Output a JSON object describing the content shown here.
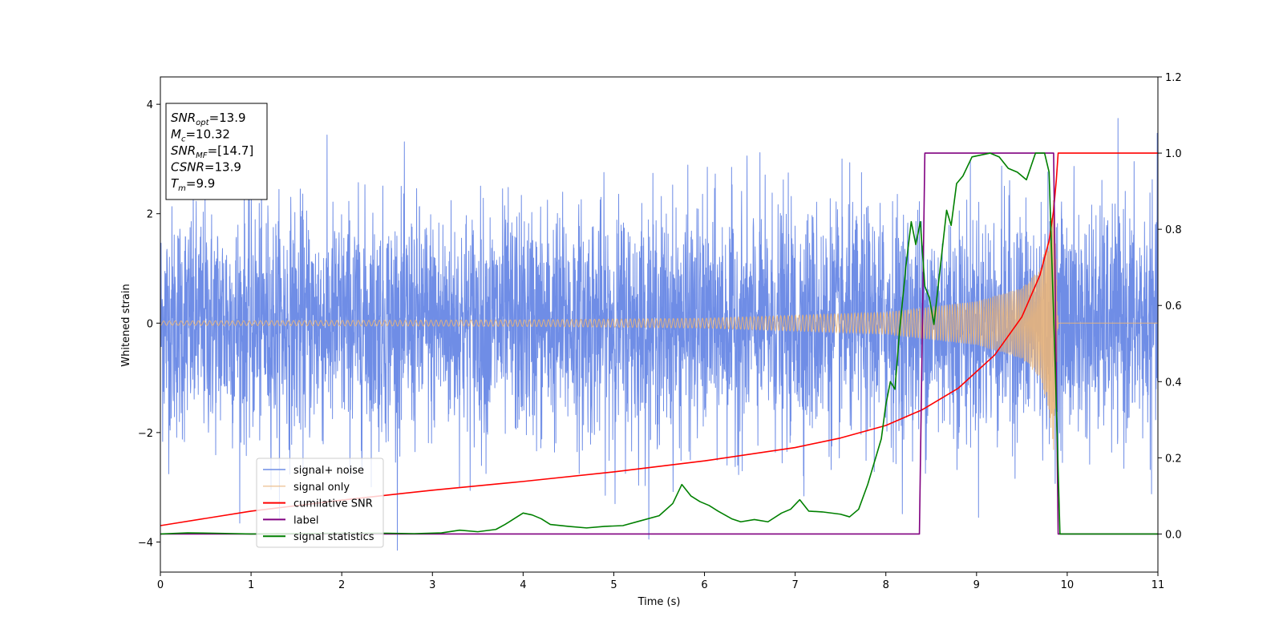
{
  "chart_data": {
    "type": "line",
    "xlabel": "Time (s)",
    "ylabel_left": "Whitened strain",
    "ylabel_right": "",
    "xlim": [
      0,
      11
    ],
    "ylim_left": [
      -4.55,
      4.5
    ],
    "ylim_right": [
      -0.1,
      1.2
    ],
    "x_ticks": [
      0,
      1,
      2,
      3,
      4,
      5,
      6,
      7,
      8,
      9,
      10,
      11
    ],
    "y_ticks_left": [
      -4,
      -2,
      0,
      2,
      4
    ],
    "y_ticks_right": [
      0.0,
      0.2,
      0.4,
      0.6,
      0.8,
      1.0,
      1.2
    ],
    "y_tick_labels_right": [
      "0.0",
      "0.2",
      "0.4",
      "0.6",
      "0.8",
      "1.0",
      "1.2"
    ],
    "grid": false,
    "legend_position": "lower-left",
    "info_box": {
      "lines": [
        {
          "name": "SNR",
          "sub": "opt",
          "value": "=13.9"
        },
        {
          "name": "M",
          "sub": "c",
          "value": "=10.32"
        },
        {
          "name": "SNR",
          "sub": "MF",
          "value": "=[14.7]"
        },
        {
          "name": "CSNR",
          "sub": "",
          "value": "=13.9"
        },
        {
          "name": "T",
          "sub": "m",
          "value": "=9.9"
        }
      ]
    },
    "series": [
      {
        "name": "signal+ noise",
        "axis": "left",
        "color": "#6f8de6",
        "kind": "noise",
        "amplitude_std": 1.05,
        "peak_range": [
          -4.15,
          4.1
        ],
        "x_range": [
          0,
          11
        ]
      },
      {
        "name": "signal only",
        "axis": "left",
        "color": "#e8b47a",
        "kind": "chirp",
        "amplitude_envelope": [
          [
            0,
            0.04
          ],
          [
            4,
            0.06
          ],
          [
            6,
            0.09
          ],
          [
            8,
            0.2
          ],
          [
            9,
            0.4
          ],
          [
            9.5,
            0.65
          ],
          [
            9.7,
            1.0
          ],
          [
            9.8,
            1.6
          ],
          [
            9.85,
            2.4
          ],
          [
            9.9,
            0.0
          ],
          [
            11,
            0.0
          ]
        ],
        "merger_time": 9.9
      },
      {
        "name": "cumilative SNR",
        "axis": "right",
        "color": "#ff0000",
        "x": [
          0,
          1,
          2,
          3,
          4,
          5,
          6,
          7,
          7.5,
          8,
          8.4,
          8.8,
          9.2,
          9.5,
          9.7,
          9.8,
          9.85,
          9.88,
          9.9,
          11
        ],
        "y": [
          0.022,
          0.06,
          0.089,
          0.115,
          0.138,
          0.163,
          0.192,
          0.227,
          0.252,
          0.285,
          0.326,
          0.383,
          0.47,
          0.57,
          0.68,
          0.77,
          0.85,
          0.93,
          1.0,
          1.0
        ]
      },
      {
        "name": "label",
        "axis": "right",
        "color": "#800080",
        "x": [
          0,
          8.37,
          8.43,
          9.85,
          9.9,
          11
        ],
        "y": [
          0,
          0,
          1.0,
          1.0,
          0,
          0
        ]
      },
      {
        "name": "signal statistics",
        "axis": "right",
        "color": "#008000",
        "x": [
          0,
          0.3,
          0.6,
          1.0,
          1.5,
          2.0,
          2.5,
          2.8,
          3.1,
          3.3,
          3.5,
          3.7,
          3.8,
          3.9,
          4.0,
          4.1,
          4.2,
          4.3,
          4.5,
          4.7,
          4.9,
          5.1,
          5.3,
          5.5,
          5.65,
          5.75,
          5.85,
          5.95,
          6.05,
          6.15,
          6.3,
          6.4,
          6.55,
          6.7,
          6.85,
          6.95,
          7.05,
          7.15,
          7.3,
          7.5,
          7.6,
          7.7,
          7.8,
          7.9,
          7.95,
          8.0,
          8.05,
          8.1,
          8.15,
          8.22,
          8.28,
          8.33,
          8.38,
          8.43,
          8.48,
          8.53,
          8.6,
          8.67,
          8.72,
          8.78,
          8.85,
          8.95,
          9.05,
          9.15,
          9.25,
          9.35,
          9.45,
          9.55,
          9.65,
          9.75,
          9.8,
          9.87,
          9.92,
          10.0,
          11.0
        ],
        "y": [
          0.0,
          0.003,
          0.002,
          0.0,
          0.001,
          0.002,
          0.002,
          0.001,
          0.003,
          0.01,
          0.006,
          0.012,
          0.025,
          0.04,
          0.055,
          0.05,
          0.04,
          0.025,
          0.02,
          0.016,
          0.02,
          0.022,
          0.035,
          0.048,
          0.08,
          0.13,
          0.1,
          0.085,
          0.075,
          0.06,
          0.04,
          0.032,
          0.038,
          0.032,
          0.055,
          0.065,
          0.09,
          0.06,
          0.058,
          0.052,
          0.045,
          0.065,
          0.13,
          0.21,
          0.25,
          0.34,
          0.4,
          0.38,
          0.53,
          0.7,
          0.82,
          0.76,
          0.82,
          0.65,
          0.62,
          0.55,
          0.7,
          0.85,
          0.81,
          0.92,
          0.94,
          0.99,
          0.995,
          1.0,
          0.99,
          0.96,
          0.95,
          0.93,
          1.0,
          1.0,
          0.95,
          0.42,
          0.0,
          0.0,
          0.0
        ]
      }
    ]
  }
}
